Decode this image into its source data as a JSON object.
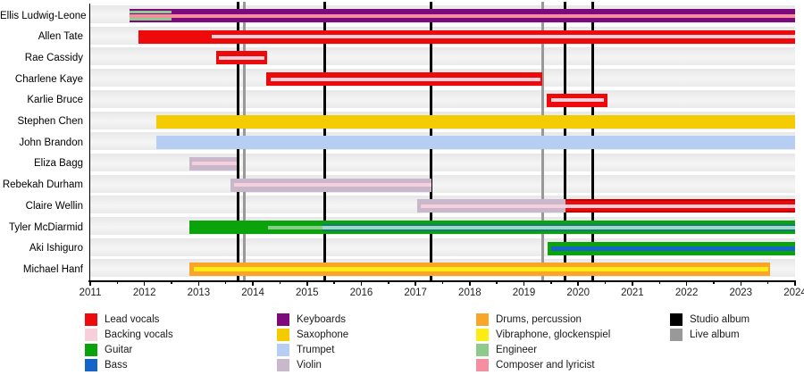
{
  "chart_data": {
    "type": "timeline-gantt",
    "description": "Band members timeline with instrument roles and album release markers",
    "x_axis": {
      "start": 2011,
      "end": 2024,
      "tick_years": [
        2011,
        2012,
        2013,
        2014,
        2015,
        2016,
        2017,
        2018,
        2019,
        2020,
        2021,
        2022,
        2023,
        2024
      ],
      "minor_tick_interval": 0.5
    },
    "members": [
      {
        "name": "Ellis Ludwig-Leone",
        "bars": [
          {
            "role": "keyboards",
            "start": 2011.72,
            "end": 2024
          }
        ],
        "stripes": [
          {
            "role": "composer_lyricist",
            "start": 2011.72,
            "end": 2024,
            "thickness": 4,
            "dy": 0
          },
          {
            "role": "engineer",
            "start": 2011.72,
            "end": 2012.5,
            "thickness": 2.5,
            "dy": -3.8
          },
          {
            "role": "engineer",
            "start": 2011.72,
            "end": 2012.5,
            "thickness": 2.5,
            "dy": 3.8
          }
        ]
      },
      {
        "name": "Allen Tate",
        "bars": [
          {
            "role": "lead_vocals",
            "start": 2011.89,
            "end": 2024
          }
        ],
        "stripes": [
          {
            "role": "backing_vocals",
            "start": 2013.24,
            "end": 2024,
            "thickness": 4,
            "dy": 0
          }
        ]
      },
      {
        "name": "Rae Cassidy",
        "bars": [
          {
            "role": "lead_vocals",
            "start": 2013.32,
            "end": 2014.26
          }
        ],
        "stripes": [
          {
            "role": "backing_vocals",
            "start": 2013.38,
            "end": 2014.22,
            "thickness": 4,
            "dy": 0
          }
        ]
      },
      {
        "name": "Charlene Kaye",
        "bars": [
          {
            "role": "lead_vocals",
            "start": 2014.25,
            "end": 2019.34
          }
        ],
        "stripes": [
          {
            "role": "backing_vocals",
            "start": 2014.33,
            "end": 2019.3,
            "thickness": 4,
            "dy": 0
          }
        ]
      },
      {
        "name": "Karlie Bruce",
        "bars": [
          {
            "role": "lead_vocals",
            "start": 2019.42,
            "end": 2020.54
          }
        ],
        "stripes": [
          {
            "role": "backing_vocals",
            "start": 2019.5,
            "end": 2020.48,
            "thickness": 4,
            "dy": 0
          }
        ]
      },
      {
        "name": "Stephen Chen",
        "bars": [
          {
            "role": "saxophone",
            "start": 2012.22,
            "end": 2024
          }
        ],
        "stripes": []
      },
      {
        "name": "John Brandon",
        "bars": [
          {
            "role": "trumpet",
            "start": 2012.22,
            "end": 2024
          }
        ],
        "stripes": []
      },
      {
        "name": "Eliza Bagg",
        "bars": [
          {
            "role": "violin",
            "start": 2012.83,
            "end": 2013.7
          }
        ],
        "stripes": [
          {
            "role": "backing_vocals",
            "start": 2012.88,
            "end": 2013.7,
            "thickness": 4,
            "dy": 0
          }
        ]
      },
      {
        "name": "Rebekah Durham",
        "bars": [
          {
            "role": "violin",
            "start": 2013.59,
            "end": 2017.29
          }
        ],
        "stripes": [
          {
            "role": "backing_vocals",
            "start": 2013.65,
            "end": 2017.29,
            "thickness": 4,
            "dy": 0
          }
        ]
      },
      {
        "name": "Claire Wellin",
        "bars": [
          {
            "role": "violin",
            "start": 2017.03,
            "end": 2019.76
          },
          {
            "role": "lead_vocals",
            "start": 2019.76,
            "end": 2024,
            "edge": "#c00000"
          }
        ],
        "stripes": [
          {
            "role": "backing_vocals",
            "start": 2017.09,
            "end": 2024,
            "thickness": 4,
            "dy": 0
          }
        ]
      },
      {
        "name": "Tyler McDiarmid",
        "bars": [
          {
            "role": "guitar",
            "start": 2012.83,
            "end": 2024
          }
        ],
        "stripes": [
          {
            "role": "engineer",
            "start": 2014.28,
            "end": 2015.28,
            "thickness": 4,
            "dy": 0
          },
          {
            "color": "#0e7b80",
            "start": 2015.28,
            "end": 2024,
            "thickness": 8,
            "dy": 0
          },
          {
            "color": "#a6d6c6",
            "start": 2015.28,
            "end": 2024,
            "thickness": 4,
            "dy": 0
          }
        ]
      },
      {
        "name": "Aki Ishiguro",
        "bars": [
          {
            "role": "guitar",
            "start": 2019.44,
            "end": 2024
          }
        ],
        "stripes": [
          {
            "role": "bass",
            "start": 2019.5,
            "end": 2024,
            "thickness": 5,
            "dy": 0
          }
        ]
      },
      {
        "name": "Michael Hanf",
        "bars": [
          {
            "role": "drums",
            "start": 2012.83,
            "end": 2023.54
          }
        ],
        "stripes": [
          {
            "role": "vibraphone",
            "start": 2012.91,
            "end": 2023.5,
            "thickness": 5,
            "dy": 0
          }
        ]
      }
    ],
    "albums": [
      {
        "type": "studio",
        "year": 2013.72
      },
      {
        "type": "live",
        "year": 2013.85
      },
      {
        "type": "studio",
        "year": 2015.32
      },
      {
        "type": "studio",
        "year": 2017.29
      },
      {
        "type": "live",
        "year": 2019.35
      },
      {
        "type": "studio",
        "year": 2019.76
      },
      {
        "type": "studio",
        "year": 2020.26
      }
    ],
    "legend": [
      {
        "label": "Lead vocals",
        "role": "lead_vocals"
      },
      {
        "label": "Backing vocals",
        "role": "backing_vocals"
      },
      {
        "label": "Guitar",
        "role": "guitar"
      },
      {
        "label": "Bass",
        "role": "bass"
      },
      {
        "label": "Keyboards",
        "role": "keyboards"
      },
      {
        "label": "Saxophone",
        "role": "saxophone"
      },
      {
        "label": "Trumpet",
        "role": "trumpet"
      },
      {
        "label": "Violin",
        "role": "violin"
      },
      {
        "label": "Drums, percussion",
        "role": "drums"
      },
      {
        "label": "Vibraphone, glockenspiel",
        "role": "vibraphone"
      },
      {
        "label": "Engineer",
        "role": "engineer"
      },
      {
        "label": "Composer and lyricist",
        "role": "composer_lyricist"
      },
      {
        "label": "Studio album",
        "role": "studio_album"
      },
      {
        "label": "Live album",
        "role": "live_album"
      }
    ]
  },
  "colors": {
    "lead_vocals": "#ee0a0a",
    "backing_vocals": "#f7cfda",
    "guitar": "#0ba30b",
    "bass": "#1565c8",
    "keyboards": "#7c0a7c",
    "saxophone": "#f4ca00",
    "trumpet": "#b6cdf4",
    "violin": "#c9b7cb",
    "drums": "#f9a528",
    "vibraphone": "#fdec13",
    "engineer": "#8ccb8c",
    "composer_lyricist": "#f58fa0",
    "studio_album": "#000000",
    "live_album": "#999999"
  }
}
